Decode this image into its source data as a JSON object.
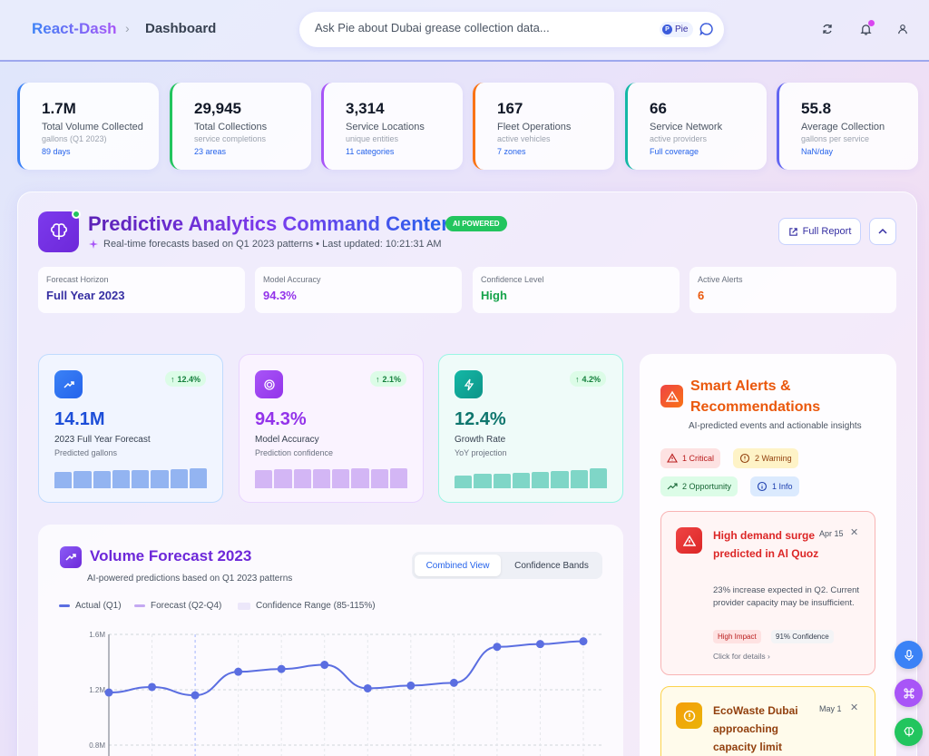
{
  "header": {
    "brand": "React-Dash",
    "breadcrumb_sep": "›",
    "page": "Dashboard",
    "search_placeholder": "Ask Pie about Dubai grease collection data...",
    "pie_chip": "Pie",
    "pie_dot": "P"
  },
  "kpis": [
    {
      "value": "1.7M",
      "label": "Total Volume Collected",
      "sub": "gallons (Q1 2023)",
      "meta": "89 days",
      "color": "#3b82f6"
    },
    {
      "value": "29,945",
      "label": "Total Collections",
      "sub": "service completions",
      "meta": "23 areas",
      "color": "#22c55e"
    },
    {
      "value": "3,314",
      "label": "Service Locations",
      "sub": "unique entities",
      "meta": "11 categories",
      "color": "#a855f7"
    },
    {
      "value": "167",
      "label": "Fleet Operations",
      "sub": "active vehicles",
      "meta": "7 zones",
      "color": "#f97316"
    },
    {
      "value": "66",
      "label": "Service Network",
      "sub": "active providers",
      "meta": "Full coverage",
      "color": "#14b8a6"
    },
    {
      "value": "55.8",
      "label": "Average Collection",
      "sub": "gallons per service",
      "meta": "NaN/day",
      "color": "#6366f1"
    }
  ],
  "command_center": {
    "title": "Predictive Analytics Command Center",
    "badge": "AI POWERED",
    "subtitle": "Real-time forecasts based on Q1 2023 patterns • Last updated: 10:21:31 AM",
    "full_report": "Full Report"
  },
  "stats": [
    {
      "label": "Forecast Horizon",
      "value": "Full Year 2023",
      "color": "#3730a3"
    },
    {
      "label": "Model Accuracy",
      "value": "94.3%",
      "color": "#9333ea"
    },
    {
      "label": "Confidence Level",
      "value": "High",
      "color": "#16a34a"
    },
    {
      "label": "Active Alerts",
      "value": "6",
      "color": "#ea580c"
    }
  ],
  "metrics": [
    {
      "delta": "12.4%",
      "value": "14.1M",
      "label": "2023 Full Year Forecast",
      "sub": "Predicted gallons",
      "levels": [
        0.75,
        0.8,
        0.8,
        0.82,
        0.85,
        0.85,
        0.88,
        0.92
      ],
      "accent": "#3b82f6",
      "icon": "trending-up-icon"
    },
    {
      "delta": "2.1%",
      "value": "94.3%",
      "label": "Model Accuracy",
      "sub": "Prediction confidence",
      "levels": [
        0.85,
        0.87,
        0.87,
        0.87,
        0.88,
        0.9,
        0.88,
        0.9
      ],
      "accent": "#a855f7",
      "icon": "target-icon"
    },
    {
      "delta": "4.2%",
      "value": "12.4%",
      "label": "Growth Rate",
      "sub": "YoY projection",
      "levels": [
        0.6,
        0.65,
        0.68,
        0.72,
        0.75,
        0.8,
        0.85,
        0.92
      ],
      "accent": "#14b8a6",
      "icon": "bolt-icon"
    }
  ],
  "volume_forecast": {
    "title": "Volume Forecast 2023",
    "subtitle": "AI-powered predictions based on Q1 2023 patterns",
    "tabs": [
      "Combined View",
      "Confidence Bands"
    ],
    "active_tab": "Combined View",
    "legend": [
      "Actual (Q1)",
      "Forecast (Q2-Q4)",
      "Confidence Range (85-115%)"
    ]
  },
  "chart_data": {
    "type": "line",
    "series": [
      {
        "name": "Actual (Q1)",
        "values": [
          1.18,
          1.22,
          1.16,
          1.33,
          1.35,
          1.38,
          1.21,
          1.23,
          1.25,
          1.51,
          1.53,
          1.55
        ]
      }
    ],
    "yticks": [
      "1.6M",
      "1.2M",
      "0.8M"
    ],
    "ylim": [
      0.6,
      1.7
    ],
    "grid": true
  },
  "alerts": {
    "title": "Smart Alerts & Recommendations",
    "subtitle": "AI-predicted events and actionable insights",
    "counts": [
      {
        "label": "1 Critical",
        "bg": "#fde2e2",
        "fg": "#b91c1c"
      },
      {
        "label": "2 Warning",
        "bg": "#fef3c7",
        "fg": "#92400e"
      },
      {
        "label": "2 Opportunity",
        "bg": "#dcfce7",
        "fg": "#166534"
      },
      {
        "label": "1 Info",
        "bg": "#dbeafe",
        "fg": "#1e40af"
      }
    ],
    "items": [
      {
        "title": "High demand surge predicted in Al Quoz",
        "date": "Apr 15",
        "close": "✕",
        "desc": "23% increase expected in Q2. Current provider capacity may be insufficient.",
        "tag1": "High Impact",
        "tag2": "91% Confidence",
        "link": "Click for details ›"
      },
      {
        "title": "EcoWaste Dubai approaching capacity limit",
        "date": "May 1",
        "close": "✕"
      }
    ]
  }
}
